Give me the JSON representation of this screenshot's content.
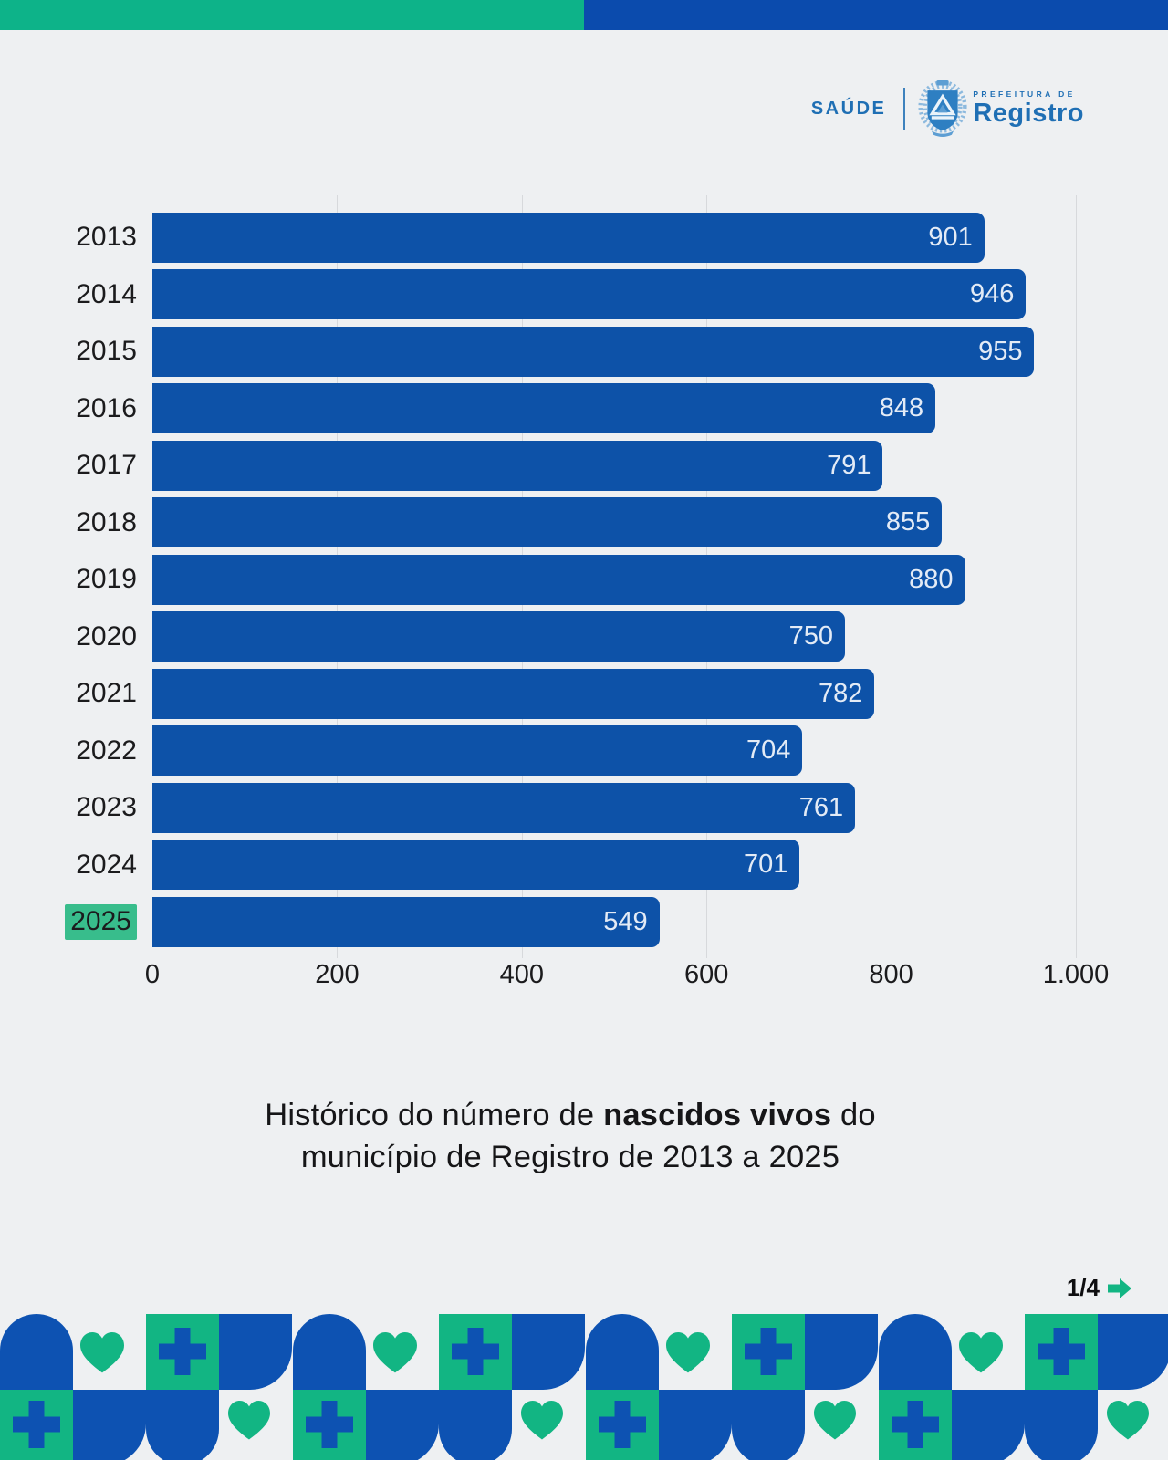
{
  "colors": {
    "banner_green": "#0db389",
    "banner_blue": "#0b4bad",
    "bar_blue": "#0d52a8",
    "accent_green": "#12b583",
    "highlight_green": "#38bd8c",
    "logo_blue": "#1f6fb4",
    "text_dark": "#1b1b1d",
    "grid_line": "#d7d9dc",
    "value_text": "#e3ebf6",
    "background": "#eef0f2",
    "frieze_blue": "#0d52b2"
  },
  "logo": {
    "department": "SAÚDE",
    "prefeitura_label": "PREFEITURA DE",
    "city_name": "Registro"
  },
  "chart_data": {
    "type": "bar",
    "orientation": "horizontal",
    "title": "Histórico do número de nascidos vivos do município de Registro de 2013 a 2025",
    "categories": [
      "2013",
      "2014",
      "2015",
      "2016",
      "2017",
      "2018",
      "2019",
      "2020",
      "2021",
      "2022",
      "2023",
      "2024",
      "2025"
    ],
    "values": [
      901,
      946,
      955,
      848,
      791,
      855,
      880,
      750,
      782,
      704,
      761,
      701,
      549
    ],
    "xlim": [
      0,
      1000
    ],
    "x_ticks": [
      {
        "label": "0",
        "value": 0
      },
      {
        "label": "200",
        "value": 200
      },
      {
        "label": "400",
        "value": 400
      },
      {
        "label": "600",
        "value": 600
      },
      {
        "label": "800",
        "value": 800
      },
      {
        "label": "1.000",
        "value": 1000
      }
    ],
    "grid": true,
    "legend": "none",
    "value_labels": "inside-end",
    "highlighted_category": "2025",
    "bar_color": "#0d52a8",
    "highlight_color": "#38bd8c"
  },
  "caption": {
    "line1_prefix": "Histórico do número de ",
    "line1_bold": "nascidos vivos",
    "line1_suffix": " do",
    "line2": "município de Registro de 2013 a 2025"
  },
  "pagination": {
    "current_page": "1/4"
  }
}
